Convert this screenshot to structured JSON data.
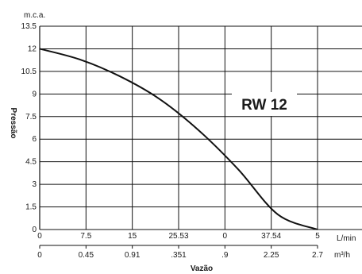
{
  "chart_data": {
    "type": "line",
    "title": "",
    "annotation": "RW 12",
    "ylabel": "Pressão",
    "xlabel": "Vazão",
    "y_unit": "m.c.a.",
    "x_unit_top": "L/min",
    "x_unit_bottom": "m³/h",
    "ylim": [
      0,
      13.5
    ],
    "y_ticks": [
      "13.5",
      "12",
      "10.5",
      "9",
      "7.5",
      "6",
      "4.5",
      "3",
      "1.5",
      "0"
    ],
    "x_ticks_top": [
      "0",
      "7.5",
      "15",
      "25.53",
      "0",
      "37.54",
      "5"
    ],
    "x_ticks_bottom": [
      "0",
      "0.45",
      "0.91",
      ".351",
      ".9",
      "2.25",
      "2.7"
    ],
    "grid": true,
    "legend": "none",
    "series": [
      {
        "x": [
          0,
          1,
          2,
          3,
          4,
          5,
          6,
          7
        ],
        "y": [
          12.0,
          11.3,
          10.2,
          8.7,
          6.6,
          4.0,
          1.0,
          0.0
        ]
      }
    ]
  },
  "colors": {
    "line": "#111111",
    "grid": "#111111",
    "background": "#ffffff"
  }
}
